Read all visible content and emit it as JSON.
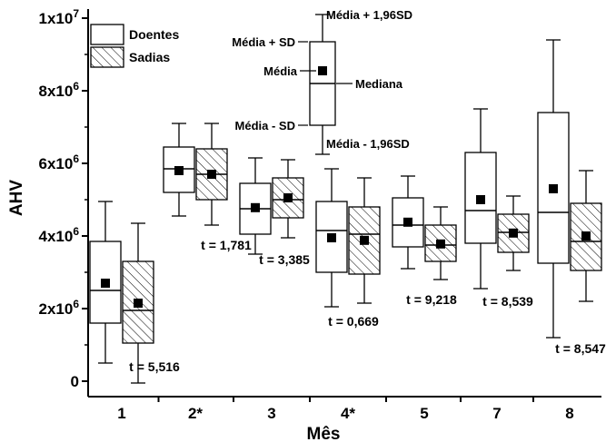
{
  "chart_data": {
    "type": "box",
    "title": "",
    "xlabel": "Mês",
    "ylabel": "AHV",
    "ylim": [
      0,
      10000000
    ],
    "y_tick_labels": [
      {
        "value": 0,
        "mantissa": "0",
        "exp": ""
      },
      {
        "value": 2000000,
        "mantissa": "2x10",
        "exp": "6"
      },
      {
        "value": 4000000,
        "mantissa": "4x10",
        "exp": "6"
      },
      {
        "value": 6000000,
        "mantissa": "6x10",
        "exp": "6"
      },
      {
        "value": 8000000,
        "mantissa": "8x10",
        "exp": "6"
      },
      {
        "value": 10000000,
        "mantissa": "1x10",
        "exp": "7"
      }
    ],
    "categories": [
      "1",
      "2*",
      "3",
      "4*",
      "5",
      "7",
      "8"
    ],
    "legend": {
      "position": "top-left",
      "entries": [
        {
          "label": "Doentes",
          "pattern": "plain"
        },
        {
          "label": "Sadias",
          "pattern": "hatched"
        }
      ]
    },
    "series": [
      {
        "name": "Doentes",
        "pattern": "plain",
        "boxes": [
          {
            "whisker_low": 500000,
            "q1": 1600000,
            "median": 2500000,
            "q3": 3850000,
            "whisker_high": 4950000,
            "mean": 2700000
          },
          {
            "whisker_low": 4550000,
            "q1": 5200000,
            "median": 5850000,
            "q3": 6450000,
            "whisker_high": 7100000,
            "mean": 5800000
          },
          {
            "whisker_low": 3500000,
            "q1": 4050000,
            "median": 4750000,
            "q3": 5450000,
            "whisker_high": 6150000,
            "mean": 4780000
          },
          {
            "whisker_low": 2050000,
            "q1": 3000000,
            "median": 4150000,
            "q3": 4950000,
            "whisker_high": 5850000,
            "mean": 3950000
          },
          {
            "whisker_low": 3100000,
            "q1": 3700000,
            "median": 4300000,
            "q3": 5050000,
            "whisker_high": 5650000,
            "mean": 4380000
          },
          {
            "whisker_low": 2550000,
            "q1": 3800000,
            "median": 4700000,
            "q3": 6300000,
            "whisker_high": 7500000,
            "mean": 5000000
          },
          {
            "whisker_low": 1200000,
            "q1": 3250000,
            "median": 4650000,
            "q3": 7400000,
            "whisker_high": 9400000,
            "mean": 5300000
          }
        ]
      },
      {
        "name": "Sadias",
        "pattern": "hatched",
        "boxes": [
          {
            "whisker_low": -50000,
            "q1": 1050000,
            "median": 1950000,
            "q3": 3300000,
            "whisker_high": 4350000,
            "mean": 2150000
          },
          {
            "whisker_low": 4300000,
            "q1": 5000000,
            "median": 5700000,
            "q3": 6400000,
            "whisker_high": 7100000,
            "mean": 5700000
          },
          {
            "whisker_low": 3950000,
            "q1": 4500000,
            "median": 5000000,
            "q3": 5600000,
            "whisker_high": 6100000,
            "mean": 5050000
          },
          {
            "whisker_low": 2150000,
            "q1": 2950000,
            "median": 4050000,
            "q3": 4800000,
            "whisker_high": 5600000,
            "mean": 3880000
          },
          {
            "whisker_low": 2800000,
            "q1": 3300000,
            "median": 3750000,
            "q3": 4300000,
            "whisker_high": 4800000,
            "mean": 3780000
          },
          {
            "whisker_low": 3050000,
            "q1": 3550000,
            "median": 4100000,
            "q3": 4600000,
            "whisker_high": 5100000,
            "mean": 4080000
          },
          {
            "whisker_low": 2200000,
            "q1": 3050000,
            "median": 3850000,
            "q3": 4900000,
            "whisker_high": 5800000,
            "mean": 4000000
          }
        ]
      }
    ],
    "t_labels": [
      {
        "category": "1",
        "text": "t = 5,516",
        "y": 400000
      },
      {
        "category": "2*",
        "text": "t = 1,781",
        "y": 3750000
      },
      {
        "category": "3",
        "text": "t = 3,385",
        "y": 3350000
      },
      {
        "category": "4*",
        "text": "t = 0,669",
        "y": 1650000
      },
      {
        "category": "5",
        "text": "t = 9,218",
        "y": 2250000
      },
      {
        "category": "7",
        "text": "t = 8,539",
        "y": 2200000
      },
      {
        "category": "8",
        "text": "t = 8,547",
        "y": 900000
      }
    ],
    "schematic_key": {
      "box": {
        "whisker_low": 6250000,
        "q1": 7050000,
        "median": 8200000,
        "q3": 9350000,
        "whisker_high": 10100000,
        "mean": 8550000
      },
      "labels": {
        "upper": "Média + 1,96SD",
        "q3": "Média + SD",
        "mean": "Média",
        "median": "Mediana",
        "q1": "Média - SD",
        "lower": "Média - 1,96SD"
      }
    }
  }
}
